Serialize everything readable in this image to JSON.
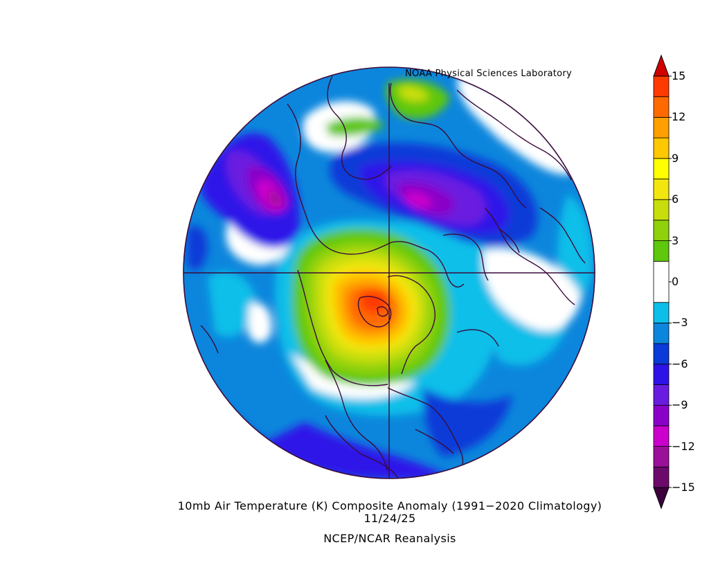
{
  "header": {
    "credit": "NOAA Physical Sciences Laboratory"
  },
  "caption": {
    "line1": "10mb Air Temperature (K) Composite Anomaly (1991−2020 Climatology)",
    "line2": "11/24/25",
    "line3": "NCEP/NCAR Reanalysis"
  },
  "colorbar": {
    "bins": [
      {
        "from": -15,
        "to": -13.5,
        "color": "#6b0a6b"
      },
      {
        "from": -13.5,
        "to": -12,
        "color": "#9a1099"
      },
      {
        "from": -12,
        "to": -10.5,
        "color": "#cc00cc"
      },
      {
        "from": -10.5,
        "to": -9,
        "color": "#8a00c8"
      },
      {
        "from": -9,
        "to": -7.5,
        "color": "#6a1be0"
      },
      {
        "from": -7.5,
        "to": -6,
        "color": "#2d13e8"
      },
      {
        "from": -6,
        "to": -4.5,
        "color": "#0a3ad8"
      },
      {
        "from": -4.5,
        "to": -3,
        "color": "#0c86dc"
      },
      {
        "from": -3,
        "to": -1.5,
        "color": "#0cbfe9"
      },
      {
        "from": -1.5,
        "to": 1.5,
        "color": "#ffffff"
      },
      {
        "from": 1.5,
        "to": 3,
        "color": "#5ec70e"
      },
      {
        "from": 3,
        "to": 4.5,
        "color": "#8fd10b"
      },
      {
        "from": 4.5,
        "to": 6,
        "color": "#c8de0c"
      },
      {
        "from": 6,
        "to": 7.5,
        "color": "#f2e60e"
      },
      {
        "from": 7.5,
        "to": 9,
        "color": "#ffff00"
      },
      {
        "from": 9,
        "to": 10.5,
        "color": "#ffc800"
      },
      {
        "from": 10.5,
        "to": 12,
        "color": "#ffa000"
      },
      {
        "from": 12,
        "to": 13.5,
        "color": "#ff6a00"
      },
      {
        "from": 13.5,
        "to": 15,
        "color": "#ff3a00"
      }
    ],
    "min_arrow_color": "#3d003d",
    "max_arrow_color": "#d00000",
    "ticks": [
      "−15",
      "−12",
      "−9",
      "−6",
      "−3",
      "0",
      "3",
      "6",
      "9",
      "12",
      "15"
    ]
  },
  "map": {
    "projection": "north-polar-stereographic",
    "variable": "10mb air temperature anomaly",
    "units": "K",
    "outline_color": "#3a0a3a"
  }
}
